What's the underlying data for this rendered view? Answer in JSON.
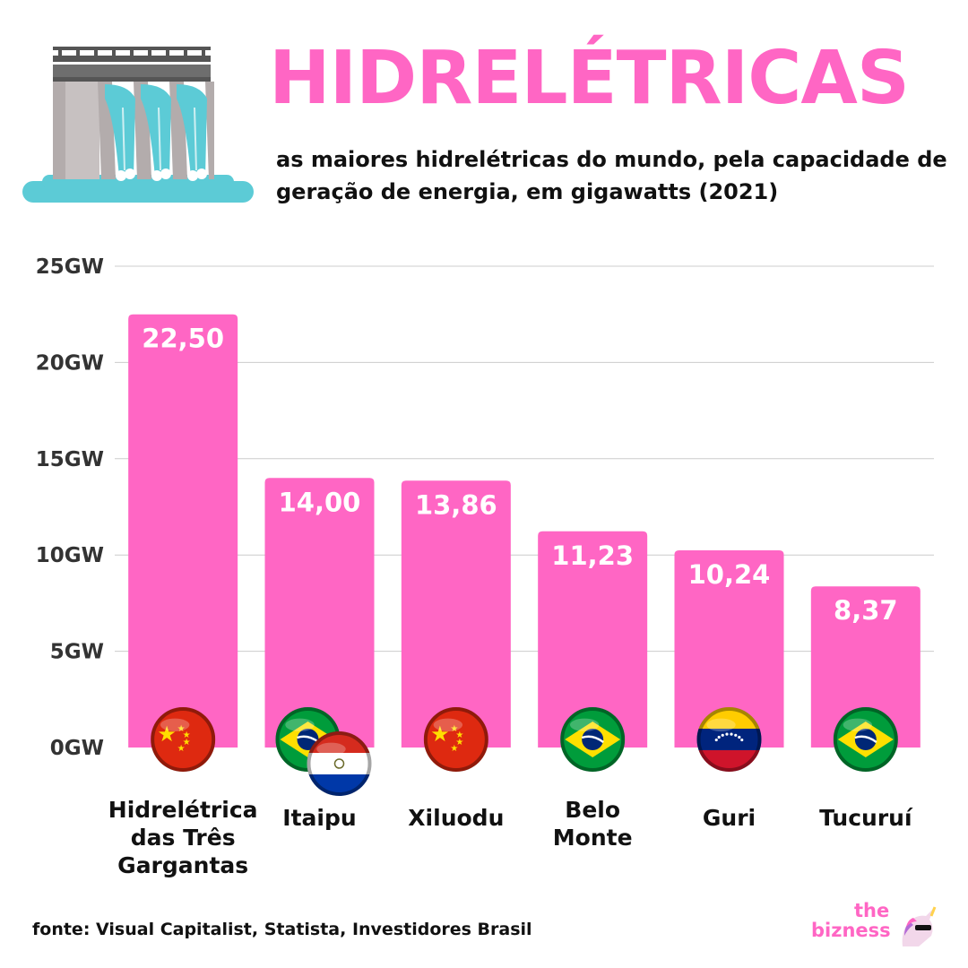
{
  "header": {
    "title": "HIDRELÉTRICAS",
    "subtitle": "as maiores hidrelétricas do mundo, pela capacidade de geração de energia, em gigawatts (2021)"
  },
  "footer": {
    "source": "fonte: Visual Capitalist, Statista, Investidores Brasil",
    "brand_line1": "the",
    "brand_line2": "bizness"
  },
  "icons": [
    "dam-icon",
    "flag-china-icon",
    "flag-brazil-icon",
    "flag-paraguay-icon",
    "flag-venezuela-icon",
    "unicorn-icon"
  ],
  "colors": {
    "accent": "#ff66c4",
    "bar": "#ff66c4",
    "text": "#111111",
    "axis_label": "#333333",
    "grid": "#cccccc"
  },
  "chart_data": {
    "type": "bar",
    "title": "HIDRELÉTRICAS",
    "categories": [
      [
        "Hidrelétrica",
        "das Três",
        "Gargantas"
      ],
      [
        "Itaipu"
      ],
      [
        "Xiluodu"
      ],
      [
        "Belo",
        "Monte"
      ],
      [
        "Guri"
      ],
      [
        "Tucuruí"
      ]
    ],
    "values": [
      22.5,
      14.0,
      13.86,
      11.23,
      10.24,
      8.37
    ],
    "value_labels": [
      "22,50",
      "14,00",
      "13,86",
      "11,23",
      "10,24",
      "8,37"
    ],
    "flags": [
      [
        "china"
      ],
      [
        "brazil",
        "paraguay"
      ],
      [
        "china"
      ],
      [
        "brazil"
      ],
      [
        "venezuela"
      ],
      [
        "brazil"
      ]
    ],
    "ylim": [
      0,
      25
    ],
    "yticks": [
      0,
      5,
      10,
      15,
      20,
      25
    ],
    "ytick_labels": [
      "0GW",
      "5GW",
      "10GW",
      "15GW",
      "20GW",
      "25GW"
    ],
    "grid": true,
    "legend": "none"
  }
}
